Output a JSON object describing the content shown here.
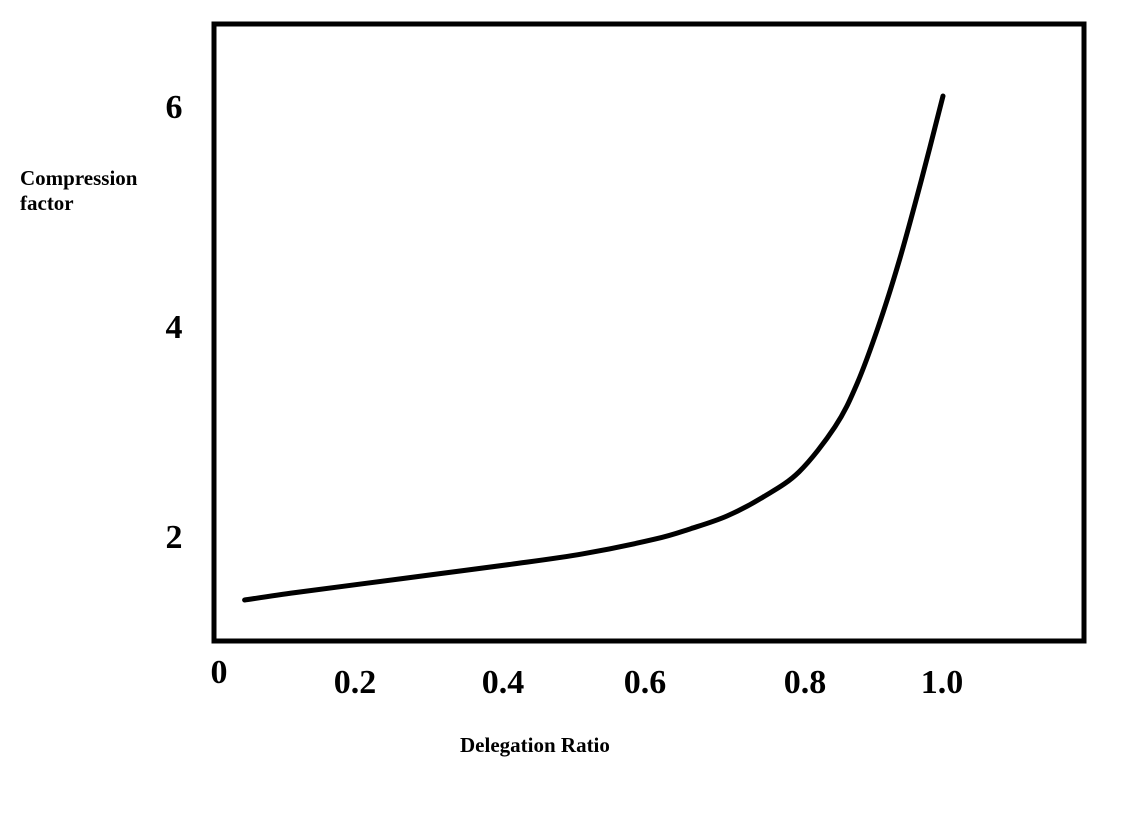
{
  "chart_data": {
    "type": "line",
    "title": "",
    "xlabel": "Delegation Ratio",
    "ylabel_lines": [
      "Compression",
      "factor"
    ],
    "x_ticks": [
      "0",
      "0.2",
      "0.4",
      "0.6",
      "0.8",
      "1.0"
    ],
    "y_ticks": [
      "2",
      "4",
      "6"
    ],
    "series": [
      {
        "x": [
          0.03,
          0.1,
          0.2,
          0.3,
          0.4,
          0.5,
          0.6,
          0.65,
          0.7,
          0.75,
          0.8,
          0.85,
          0.88,
          0.91,
          0.94,
          0.97,
          1.0
        ],
        "y": [
          1.4,
          1.47,
          1.56,
          1.65,
          1.74,
          1.84,
          1.98,
          2.08,
          2.2,
          2.38,
          2.62,
          3.05,
          3.45,
          4.0,
          4.65,
          5.4,
          6.2
        ]
      }
    ],
    "grid": false,
    "legend": "none",
    "colors": {
      "line": "#000000",
      "frame": "#000000",
      "background": "#ffffff"
    }
  }
}
